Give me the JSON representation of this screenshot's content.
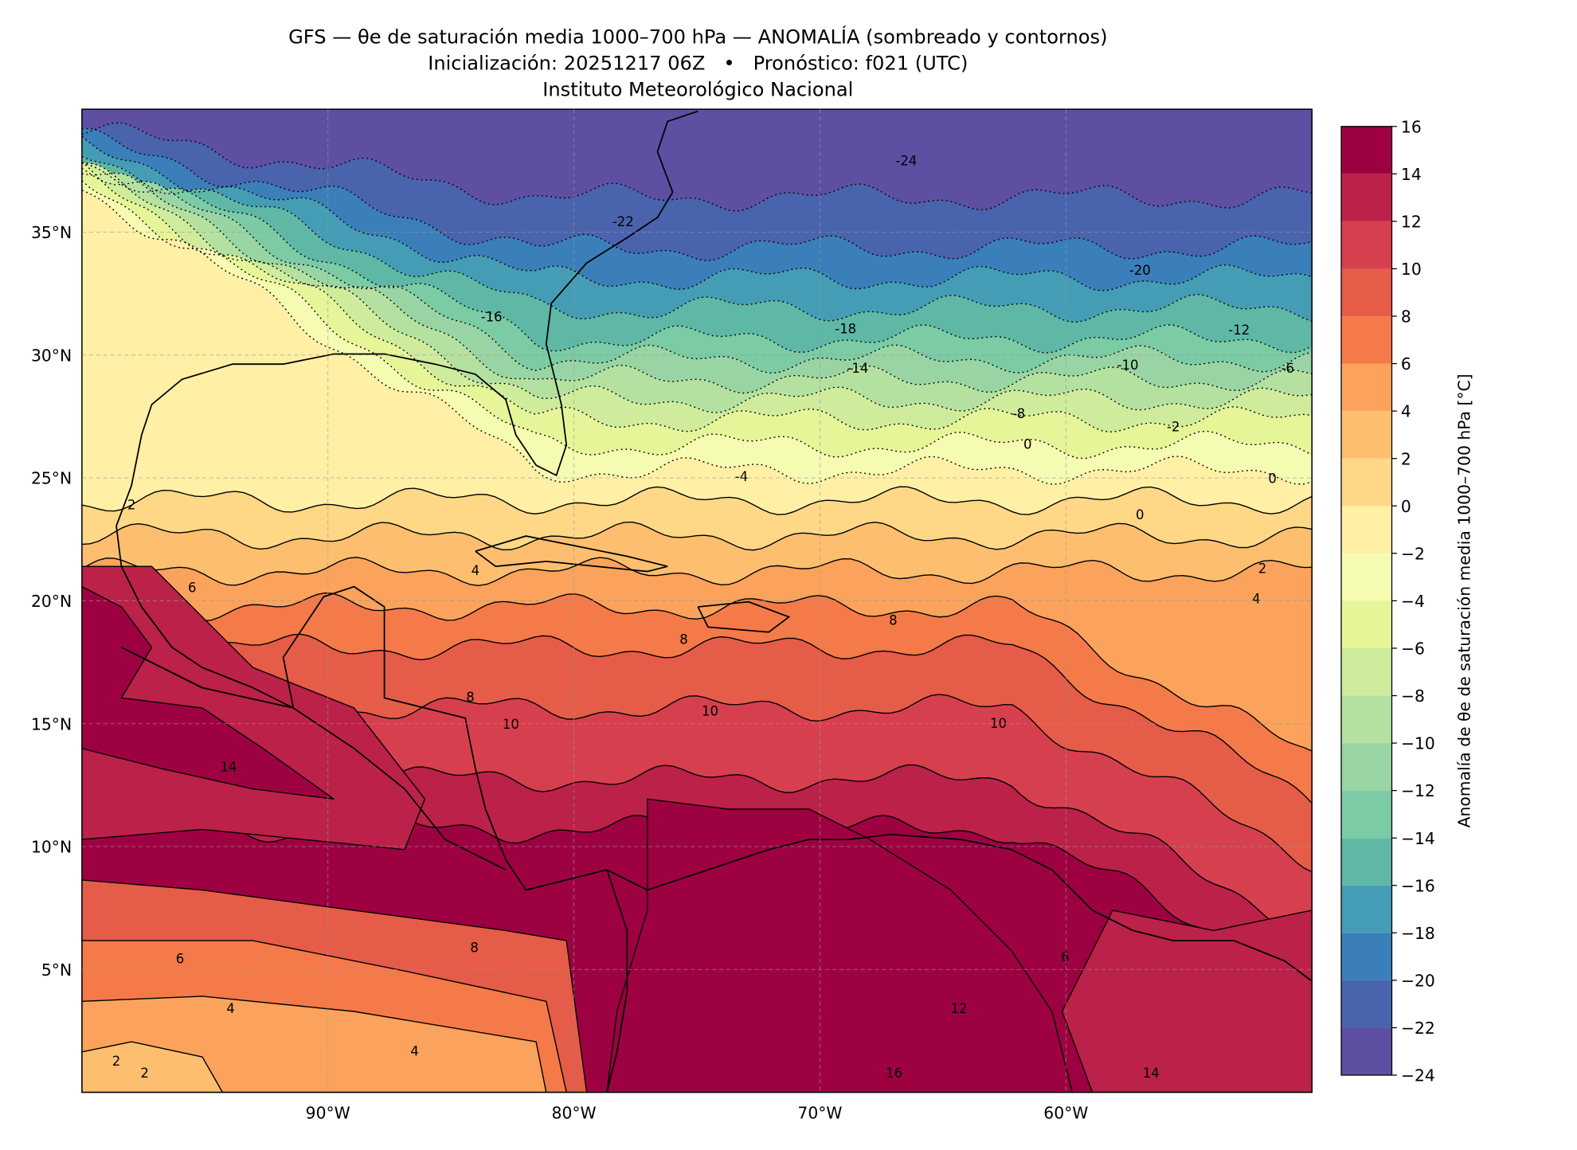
{
  "chart_data": {
    "type": "map",
    "title": "GFS — θe de saturación media 1000–700 hPa — ANOMALÍA (sombreado y contornos)",
    "subtitle": "Inicialización: 20251217 06Z   •   Pronóstico: f021 (UTC)",
    "source": "Instituto Meteorológico Nacional",
    "xlim": [
      -100,
      -50
    ],
    "ylim": [
      0,
      40
    ],
    "xticks": [
      {
        "value": -90,
        "label": "90°W"
      },
      {
        "value": -80,
        "label": "80°W"
      },
      {
        "value": -70,
        "label": "70°W"
      },
      {
        "value": -60,
        "label": "60°W"
      }
    ],
    "yticks": [
      {
        "value": 5,
        "label": "5°N"
      },
      {
        "value": 10,
        "label": "10°N"
      },
      {
        "value": 15,
        "label": "15°N"
      },
      {
        "value": 20,
        "label": "20°N"
      },
      {
        "value": 25,
        "label": "25°N"
      },
      {
        "value": 30,
        "label": "30°N"
      },
      {
        "value": 35,
        "label": "35°N"
      }
    ],
    "grid": true,
    "colorbar": {
      "label": "Anomalía de θe de saturación media 1000–700 hPa [°C]",
      "ticks": [
        {
          "value": -24,
          "label": "−24"
        },
        {
          "value": -22,
          "label": "−22"
        },
        {
          "value": -20,
          "label": "−20"
        },
        {
          "value": -18,
          "label": "−18"
        },
        {
          "value": -16,
          "label": "−16"
        },
        {
          "value": -14,
          "label": "−14"
        },
        {
          "value": -12,
          "label": "−12"
        },
        {
          "value": -10,
          "label": "−10"
        },
        {
          "value": -8,
          "label": "−8"
        },
        {
          "value": -6,
          "label": "−6"
        },
        {
          "value": -4,
          "label": "−4"
        },
        {
          "value": -2,
          "label": "−2"
        },
        0,
        2,
        4,
        6,
        8,
        10,
        12,
        14,
        16
      ],
      "colors": [
        "#5e4fa2",
        "#4a63ad",
        "#3a7fb9",
        "#449db4",
        "#5fb7a6",
        "#7bcba5",
        "#99d5a4",
        "#b5e1a0",
        "#cfec9d",
        "#e6f598",
        "#f6fbb2",
        "#fff0a6",
        "#fed887",
        "#fdbf6f",
        "#fba35c",
        "#f57a49",
        "#e55c48",
        "#d6404e",
        "#bb2149",
        "#9e0142"
      ]
    },
    "contour_labels": [
      "-24",
      "-22",
      "-20",
      "-18",
      "-16",
      "-14",
      "-12",
      "-10",
      "-6",
      "-8",
      "-4",
      "-2",
      "0",
      "0",
      "0",
      "2",
      "2",
      "4",
      "4",
      "4",
      "6",
      "6",
      "6",
      "8",
      "8",
      "8",
      "8",
      "10",
      "10",
      "10",
      "12",
      "14",
      "14",
      "16",
      "2",
      "2",
      "4"
    ]
  }
}
